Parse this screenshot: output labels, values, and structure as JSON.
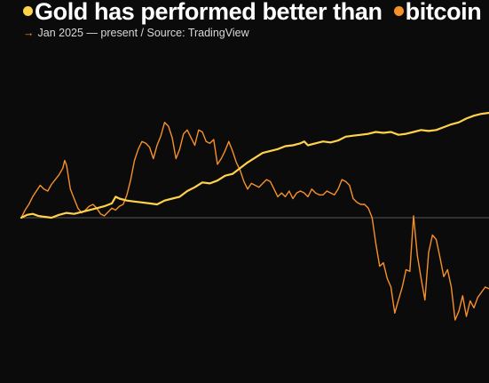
{
  "header": {
    "title_gold": "Gold has performed better than",
    "title_bitcoin": "bitcoin",
    "subtitle_arrow": "→",
    "subtitle": "Jan 2025 — present / Source: TradingView"
  },
  "colors": {
    "background": "#0b0b0b",
    "gold": "#ffd24a",
    "bitcoin": "#f5912a",
    "baseline": "#5a5a5a"
  },
  "chart_data": {
    "type": "line",
    "title": "Gold has performed better than bitcoin",
    "subtitle": "Jan 2025 — present / Source: TradingView",
    "x_unit": "time index (Jan 2025 — present)",
    "y_unit": "relative change from start (baseline = 0)",
    "baseline": 0,
    "ylim": [
      -120,
      110
    ],
    "grid": false,
    "legend": "inline in title",
    "series": [
      {
        "name": "Gold",
        "color": "#ffd24a",
        "points": [
          [
            0,
            0
          ],
          [
            1.5,
            3
          ],
          [
            3,
            4
          ],
          [
            4.5,
            2
          ],
          [
            6,
            1
          ],
          [
            8,
            0
          ],
          [
            10,
            3
          ],
          [
            12,
            5
          ],
          [
            14,
            4
          ],
          [
            16,
            6
          ],
          [
            18,
            8
          ],
          [
            20,
            10
          ],
          [
            22,
            12
          ],
          [
            24,
            15
          ],
          [
            25,
            22
          ],
          [
            26,
            20
          ],
          [
            28,
            18
          ],
          [
            30,
            17
          ],
          [
            32,
            16
          ],
          [
            34,
            15
          ],
          [
            36,
            14
          ],
          [
            38,
            18
          ],
          [
            40,
            20
          ],
          [
            42,
            22
          ],
          [
            44,
            28
          ],
          [
            46,
            32
          ],
          [
            48,
            37
          ],
          [
            50,
            36
          ],
          [
            52,
            39
          ],
          [
            54,
            44
          ],
          [
            56,
            46
          ],
          [
            58,
            52
          ],
          [
            60,
            58
          ],
          [
            62,
            63
          ],
          [
            64,
            68
          ],
          [
            66,
            70
          ],
          [
            68,
            72
          ],
          [
            70,
            75
          ],
          [
            72,
            76
          ],
          [
            74,
            78
          ],
          [
            75,
            80
          ],
          [
            76,
            76
          ],
          [
            78,
            78
          ],
          [
            80,
            80
          ],
          [
            82,
            79
          ],
          [
            84,
            81
          ],
          [
            86,
            85
          ],
          [
            88,
            86
          ],
          [
            90,
            87
          ],
          [
            92,
            88
          ],
          [
            94,
            90
          ],
          [
            96,
            89
          ],
          [
            98,
            90
          ],
          [
            100,
            87
          ],
          [
            102,
            88
          ],
          [
            104,
            90
          ],
          [
            106,
            92
          ],
          [
            108,
            91
          ],
          [
            110,
            92
          ],
          [
            112,
            95
          ],
          [
            114,
            98
          ],
          [
            116,
            100
          ],
          [
            118,
            104
          ],
          [
            120,
            107
          ],
          [
            122,
            109
          ],
          [
            124,
            110
          ]
        ]
      },
      {
        "name": "Bitcoin",
        "color": "#f5912a",
        "points": [
          [
            0,
            0
          ],
          [
            1,
            8
          ],
          [
            2,
            14
          ],
          [
            3,
            22
          ],
          [
            4,
            28
          ],
          [
            5,
            34
          ],
          [
            6,
            30
          ],
          [
            7,
            28
          ],
          [
            8,
            35
          ],
          [
            9,
            40
          ],
          [
            10,
            45
          ],
          [
            11,
            52
          ],
          [
            11.5,
            60
          ],
          [
            12,
            55
          ],
          [
            13,
            30
          ],
          [
            14,
            20
          ],
          [
            15,
            10
          ],
          [
            16,
            5
          ],
          [
            17,
            8
          ],
          [
            18,
            12
          ],
          [
            19,
            14
          ],
          [
            20,
            10
          ],
          [
            21,
            4
          ],
          [
            22,
            2
          ],
          [
            23,
            6
          ],
          [
            24,
            10
          ],
          [
            25,
            8
          ],
          [
            26,
            12
          ],
          [
            27,
            14
          ],
          [
            28,
            24
          ],
          [
            29,
            40
          ],
          [
            30,
            60
          ],
          [
            31,
            72
          ],
          [
            32,
            80
          ],
          [
            33,
            78
          ],
          [
            34,
            74
          ],
          [
            35,
            62
          ],
          [
            36,
            76
          ],
          [
            37,
            86
          ],
          [
            38,
            100
          ],
          [
            39,
            96
          ],
          [
            40,
            84
          ],
          [
            41,
            62
          ],
          [
            42,
            72
          ],
          [
            43,
            88
          ],
          [
            44,
            92
          ],
          [
            45,
            84
          ],
          [
            46,
            76
          ],
          [
            47,
            92
          ],
          [
            48,
            90
          ],
          [
            49,
            80
          ],
          [
            50,
            78
          ],
          [
            51,
            82
          ],
          [
            52,
            56
          ],
          [
            53,
            62
          ],
          [
            54,
            70
          ],
          [
            55,
            80
          ],
          [
            56,
            70
          ],
          [
            57,
            58
          ],
          [
            58,
            50
          ],
          [
            59,
            38
          ],
          [
            60,
            30
          ],
          [
            61,
            36
          ],
          [
            62,
            34
          ],
          [
            63,
            32
          ],
          [
            64,
            36
          ],
          [
            65,
            40
          ],
          [
            66,
            38
          ],
          [
            67,
            30
          ],
          [
            68,
            22
          ],
          [
            69,
            26
          ],
          [
            70,
            22
          ],
          [
            71,
            28
          ],
          [
            72,
            20
          ],
          [
            73,
            26
          ],
          [
            74,
            28
          ],
          [
            75,
            26
          ],
          [
            76,
            22
          ],
          [
            77,
            30
          ],
          [
            78,
            26
          ],
          [
            79,
            24
          ],
          [
            80,
            24
          ],
          [
            81,
            28
          ],
          [
            82,
            26
          ],
          [
            83,
            24
          ],
          [
            84,
            30
          ],
          [
            85,
            40
          ],
          [
            86,
            38
          ],
          [
            87,
            34
          ],
          [
            88,
            20
          ],
          [
            89,
            16
          ],
          [
            90,
            14
          ],
          [
            91,
            14
          ],
          [
            92,
            10
          ],
          [
            93,
            0
          ],
          [
            94,
            -30
          ],
          [
            95,
            -56
          ],
          [
            96,
            -52
          ],
          [
            97,
            -70
          ],
          [
            98,
            -80
          ],
          [
            99,
            -110
          ],
          [
            100,
            -95
          ],
          [
            101,
            -80
          ],
          [
            102,
            -60
          ],
          [
            103,
            -62
          ],
          [
            104,
            2
          ],
          [
            105,
            -44
          ],
          [
            106,
            -70
          ],
          [
            107,
            -95
          ],
          [
            108,
            -40
          ],
          [
            109,
            -20
          ],
          [
            110,
            -25
          ],
          [
            111,
            -46
          ],
          [
            112,
            -68
          ],
          [
            113,
            -60
          ],
          [
            114,
            -80
          ],
          [
            115,
            -118
          ],
          [
            116,
            -108
          ],
          [
            117,
            -90
          ],
          [
            118,
            -114
          ],
          [
            119,
            -96
          ],
          [
            120,
            -104
          ],
          [
            121,
            -92
          ],
          [
            122,
            -86
          ],
          [
            123,
            -80
          ],
          [
            124,
            -82
          ]
        ]
      }
    ]
  }
}
